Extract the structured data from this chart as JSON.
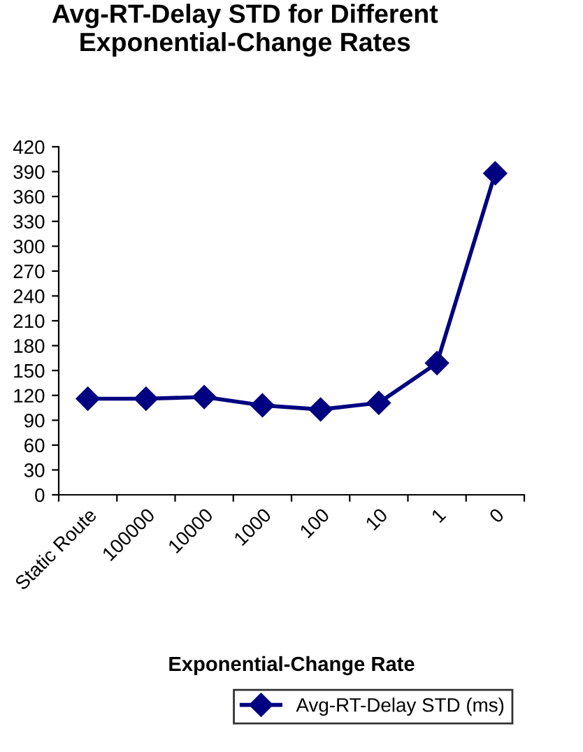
{
  "chart_data": {
    "type": "line",
    "title": "Avg-RT-Delay STD for Different\nExponential-Change Rates",
    "xlabel": "Exponential-Change Rate",
    "categories": [
      "Static Route",
      "100000",
      "10000",
      "1000",
      "100",
      "10",
      "1",
      "0"
    ],
    "series": [
      {
        "name": "Avg-RT-Delay STD (ms)",
        "color": "#000080",
        "values": [
          116,
          116,
          118,
          108,
          103,
          111,
          159,
          388
        ]
      }
    ],
    "ylim": [
      0,
      420
    ],
    "yticks": [
      0,
      30,
      60,
      90,
      120,
      150,
      180,
      210,
      240,
      270,
      300,
      330,
      360,
      390,
      420
    ],
    "marker": "diamond",
    "line_style": "solid",
    "grid": false,
    "legend": "bottom"
  }
}
